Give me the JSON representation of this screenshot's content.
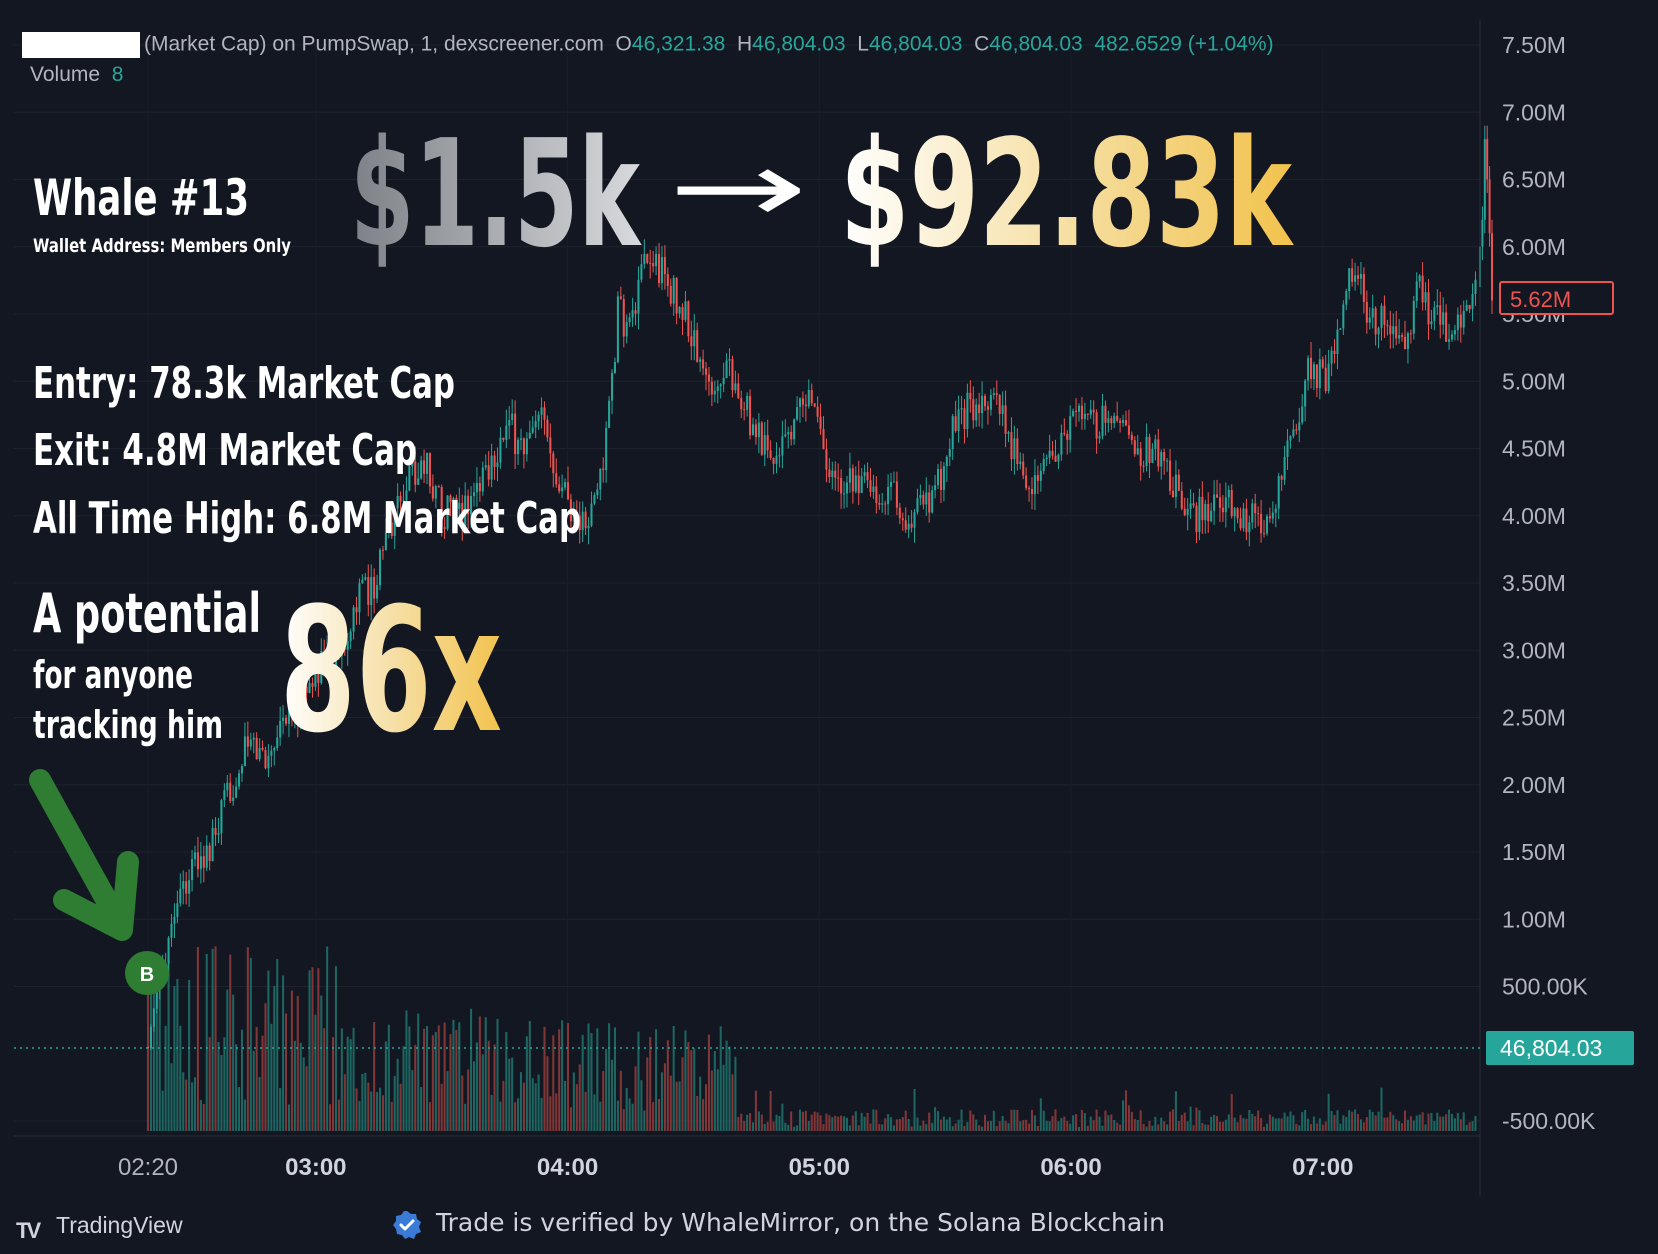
{
  "header": {
    "symbol_suffix": "(Market Cap) on PumpSwap, 1, dexscreener.com",
    "ohlc": {
      "o_label": "O",
      "o": "46,321.38",
      "h_label": "H",
      "h": "46,804.03",
      "l_label": "L",
      "l": "46,804.03",
      "c_label": "C",
      "c": "46,804.03",
      "change": "482.6529 (+1.04%)"
    },
    "volume_label": "Volume",
    "volume_value": "8"
  },
  "overlay": {
    "whale_title": "Whale #13",
    "wallet_note": "Wallet Address: Members Only",
    "invested": "$1.5k",
    "arrow": "→",
    "returned": "$92.83k",
    "entry": "Entry: 78.3k Market Cap",
    "exit": "Exit: 4.8M Market Cap",
    "ath": "All Time High: 6.8M Market Cap",
    "potential_line1": "A potential",
    "potential_line2": "for anyone",
    "potential_line3": "tracking him",
    "multiple": "86x",
    "buy_marker": "B"
  },
  "price_labels": {
    "current_red": "5.62M",
    "current_volume": "46,804.03"
  },
  "footer": {
    "brand": "TradingView",
    "verified_text": "Trade is verified by WhaleMirror, on the Solana Blockchain"
  },
  "colors": {
    "background": "#131722",
    "up": "#26a69a",
    "down": "#ef5350",
    "grid": "#1f2430",
    "text": "#b2b5be",
    "gold": "#f2c94c",
    "grey_gradient": "#9a9da3",
    "arrow_green": "#2e7d32",
    "verify_blue": "#3a7bd5"
  },
  "chart_data": {
    "type": "candlestick",
    "title": "",
    "y_axis_ticks": [
      "7.50M",
      "7.00M",
      "6.50M",
      "6.00M",
      "5.50M",
      "5.00M",
      "4.50M",
      "4.00M",
      "3.50M",
      "3.00M",
      "2.50M",
      "2.00M",
      "1.50M",
      "1.00M",
      "500.00K",
      "-500.00K"
    ],
    "y_tick_values": [
      7500000,
      7000000,
      6500000,
      6000000,
      5500000,
      5000000,
      4500000,
      4000000,
      3500000,
      3000000,
      2500000,
      2000000,
      1500000,
      1000000,
      500000,
      -500000
    ],
    "ylim": [
      -500000,
      7500000
    ],
    "x_axis_ticks": [
      "02:20",
      "03:00",
      "04:00",
      "05:00",
      "06:00",
      "07:00"
    ],
    "x_tick_minutes": [
      140,
      180,
      240,
      300,
      360,
      420
    ],
    "xlim_minutes": [
      140,
      457
    ],
    "price_path": [
      {
        "t": 140,
        "v": 0.05
      },
      {
        "t": 143,
        "v": 0.6
      },
      {
        "t": 147,
        "v": 1.2
      },
      {
        "t": 151,
        "v": 1.4
      },
      {
        "t": 155,
        "v": 1.5
      },
      {
        "t": 160,
        "v": 2.0
      },
      {
        "t": 164,
        "v": 2.3
      },
      {
        "t": 168,
        "v": 2.2
      },
      {
        "t": 172,
        "v": 2.5
      },
      {
        "t": 176,
        "v": 2.6
      },
      {
        "t": 181,
        "v": 2.9
      },
      {
        "t": 186,
        "v": 3.05
      },
      {
        "t": 190,
        "v": 3.4
      },
      {
        "t": 194,
        "v": 3.5
      },
      {
        "t": 198,
        "v": 3.95
      },
      {
        "t": 202,
        "v": 4.3
      },
      {
        "t": 206,
        "v": 4.4
      },
      {
        "t": 210,
        "v": 4.05
      },
      {
        "t": 214,
        "v": 4.0
      },
      {
        "t": 218,
        "v": 4.2
      },
      {
        "t": 222,
        "v": 4.45
      },
      {
        "t": 226,
        "v": 4.65
      },
      {
        "t": 230,
        "v": 4.5
      },
      {
        "t": 234,
        "v": 4.7
      },
      {
        "t": 238,
        "v": 4.3
      },
      {
        "t": 242,
        "v": 4.0
      },
      {
        "t": 245,
        "v": 3.9
      },
      {
        "t": 249,
        "v": 4.5
      },
      {
        "t": 252,
        "v": 5.5
      },
      {
        "t": 255,
        "v": 5.4
      },
      {
        "t": 258,
        "v": 5.8
      },
      {
        "t": 261,
        "v": 5.9
      },
      {
        "t": 264,
        "v": 5.7
      },
      {
        "t": 268,
        "v": 5.5
      },
      {
        "t": 271,
        "v": 5.2
      },
      {
        "t": 274,
        "v": 4.9
      },
      {
        "t": 278,
        "v": 5.2
      },
      {
        "t": 281,
        "v": 4.9
      },
      {
        "t": 285,
        "v": 4.6
      },
      {
        "t": 289,
        "v": 4.4
      },
      {
        "t": 293,
        "v": 4.6
      },
      {
        "t": 297,
        "v": 4.9
      },
      {
        "t": 301,
        "v": 4.45
      },
      {
        "t": 305,
        "v": 4.2
      },
      {
        "t": 309,
        "v": 4.3
      },
      {
        "t": 313,
        "v": 4.1
      },
      {
        "t": 317,
        "v": 4.25
      },
      {
        "t": 321,
        "v": 4.0
      },
      {
        "t": 325,
        "v": 4.1
      },
      {
        "t": 329,
        "v": 4.3
      },
      {
        "t": 333,
        "v": 4.75
      },
      {
        "t": 337,
        "v": 4.8
      },
      {
        "t": 341,
        "v": 4.9
      },
      {
        "t": 345,
        "v": 4.6
      },
      {
        "t": 349,
        "v": 4.3
      },
      {
        "t": 353,
        "v": 4.3
      },
      {
        "t": 357,
        "v": 4.45
      },
      {
        "t": 361,
        "v": 4.7
      },
      {
        "t": 365,
        "v": 4.65
      },
      {
        "t": 369,
        "v": 4.8
      },
      {
        "t": 373,
        "v": 4.6
      },
      {
        "t": 377,
        "v": 4.5
      },
      {
        "t": 381,
        "v": 4.5
      },
      {
        "t": 385,
        "v": 4.2
      },
      {
        "t": 389,
        "v": 4.0
      },
      {
        "t": 393,
        "v": 4.05
      },
      {
        "t": 397,
        "v": 4.15
      },
      {
        "t": 401,
        "v": 4.0
      },
      {
        "t": 405,
        "v": 3.95
      },
      {
        "t": 409,
        "v": 4.1
      },
      {
        "t": 413,
        "v": 4.6
      },
      {
        "t": 417,
        "v": 5.1
      },
      {
        "t": 421,
        "v": 5.05
      },
      {
        "t": 425,
        "v": 5.6
      },
      {
        "t": 428,
        "v": 5.9
      },
      {
        "t": 431,
        "v": 5.5
      },
      {
        "t": 434,
        "v": 5.45
      },
      {
        "t": 437,
        "v": 5.4
      },
      {
        "t": 440,
        "v": 5.35
      },
      {
        "t": 443,
        "v": 5.7
      },
      {
        "t": 446,
        "v": 5.5
      },
      {
        "t": 449,
        "v": 5.4
      },
      {
        "t": 452,
        "v": 5.5
      },
      {
        "t": 455,
        "v": 5.55
      },
      {
        "t": 457,
        "v": 5.7
      }
    ],
    "spike_tail": [
      {
        "t": 458,
        "v": 6.0
      },
      {
        "t": 459,
        "v": 6.2
      },
      {
        "t": 460,
        "v": 6.8
      },
      {
        "t": 461,
        "v": 6.5
      },
      {
        "t": 462,
        "v": 6.1
      },
      {
        "t": 463,
        "v": 5.6
      }
    ],
    "volume_profile": "bars along bottom band scaled to volume axis, taller early (02:20–03:50), sparse later",
    "buy_marker_minute": 140,
    "annotations": [
      "B (buy) at 02:20 near lowest price"
    ],
    "grid": true,
    "legend": "none"
  }
}
